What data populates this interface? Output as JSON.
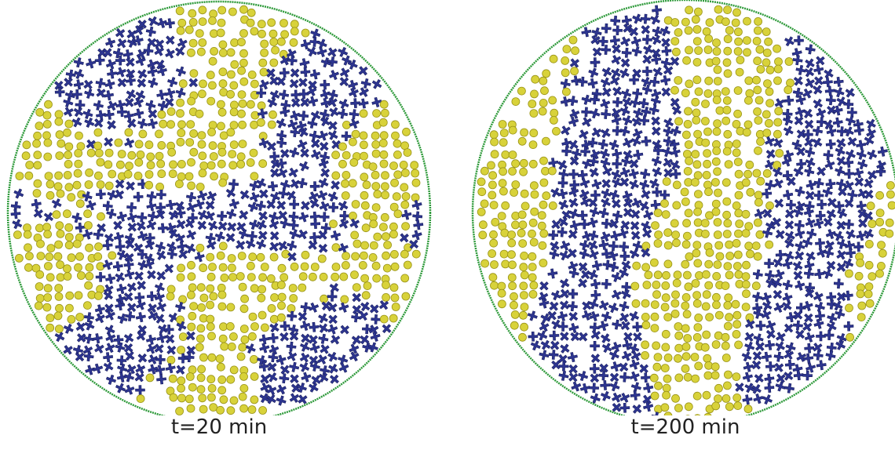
{
  "panels": [
    {
      "label": "t=20 min"
    },
    {
      "label": "t=200 min"
    }
  ]
}
